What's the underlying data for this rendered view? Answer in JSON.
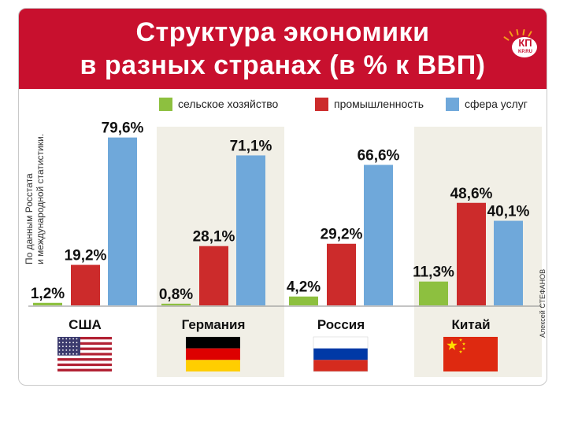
{
  "header": {
    "title_line1": "Структура экономики",
    "title_line2": "в разных странах (в % к ВВП)",
    "logo_text": "КП",
    "logo_sub": "KP.RU"
  },
  "source_note": {
    "line1": "По данным Росстата",
    "line2": "и международной статистики."
  },
  "author": "Алексей СТЕФАНОВ",
  "colors": {
    "header": "#c8102e",
    "agriculture": "#8dc03f",
    "industry": "#cc2b2b",
    "services": "#6fa8da",
    "band_shade": "#f1efe6"
  },
  "chart_data": {
    "type": "bar",
    "title": "Структура экономики в разных странах (в % к ВВП)",
    "categories": [
      "США",
      "Германия",
      "Россия",
      "Китай"
    ],
    "series": [
      {
        "name": "сельское хозяйство",
        "values": [
          1.2,
          0.8,
          4.2,
          11.3
        ],
        "labels": [
          "1,2%",
          "0,8%",
          "4,2%",
          "11,3%"
        ]
      },
      {
        "name": "промышленность",
        "values": [
          19.2,
          28.1,
          29.2,
          48.6
        ],
        "labels": [
          "19,2%",
          "28,1%",
          "29,2%",
          "48,6%"
        ]
      },
      {
        "name": "сфера услуг",
        "values": [
          79.6,
          71.1,
          66.6,
          40.1
        ],
        "labels": [
          "79,6%",
          "71,1%",
          "66,6%",
          "40,1%"
        ]
      }
    ],
    "ylim": [
      0,
      80
    ],
    "grid": false,
    "legend_position": "top",
    "category_icons": [
      "usa-flag",
      "germany-flag",
      "russia-flag",
      "china-flag"
    ]
  }
}
